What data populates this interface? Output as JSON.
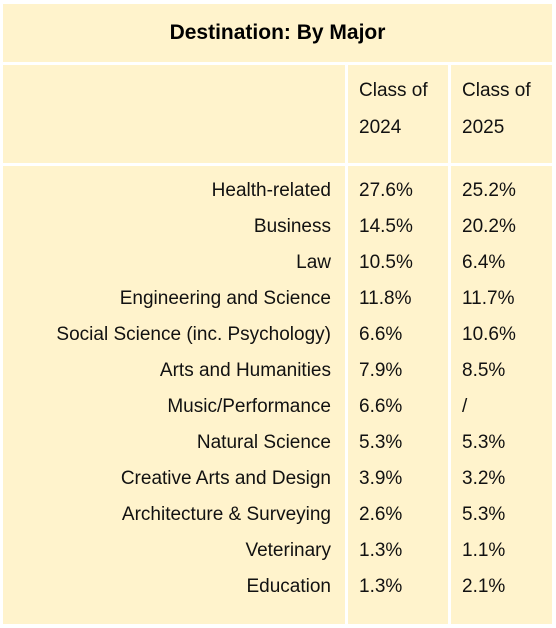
{
  "title": "Destination: By Major",
  "columns": [
    {
      "line1": "Class of",
      "line2": "2024"
    },
    {
      "line1": "Class of",
      "line2": "2025"
    }
  ],
  "rows": [
    {
      "major": "Health-related",
      "v2024": "27.6%",
      "v2025": "25.2%"
    },
    {
      "major": "Business",
      "v2024": "14.5%",
      "v2025": "20.2%"
    },
    {
      "major": "Law",
      "v2024": "10.5%",
      "v2025": "6.4%"
    },
    {
      "major": "Engineering and Science",
      "v2024": "11.8%",
      "v2025": "11.7%"
    },
    {
      "major": "Social Science (inc. Psychology)",
      "v2024": "6.6%",
      "v2025": "10.6%"
    },
    {
      "major": "Arts and Humanities",
      "v2024": "7.9%",
      "v2025": "8.5%"
    },
    {
      "major": "Music/Performance",
      "v2024": "6.6%",
      "v2025": "/"
    },
    {
      "major": "Natural Science",
      "v2024": "5.3%",
      "v2025": "5.3%"
    },
    {
      "major": "Creative Arts and Design",
      "v2024": "3.9%",
      "v2025": "3.2%"
    },
    {
      "major": "Architecture & Surveying",
      "v2024": "2.6%",
      "v2025": "5.3%"
    },
    {
      "major": "Veterinary",
      "v2024": "1.3%",
      "v2025": "1.1%"
    },
    {
      "major": "Education",
      "v2024": "1.3%",
      "v2025": "2.1%"
    }
  ],
  "colors": {
    "background": "#fff3cc",
    "divider": "#ffffff",
    "text": "#111111"
  }
}
